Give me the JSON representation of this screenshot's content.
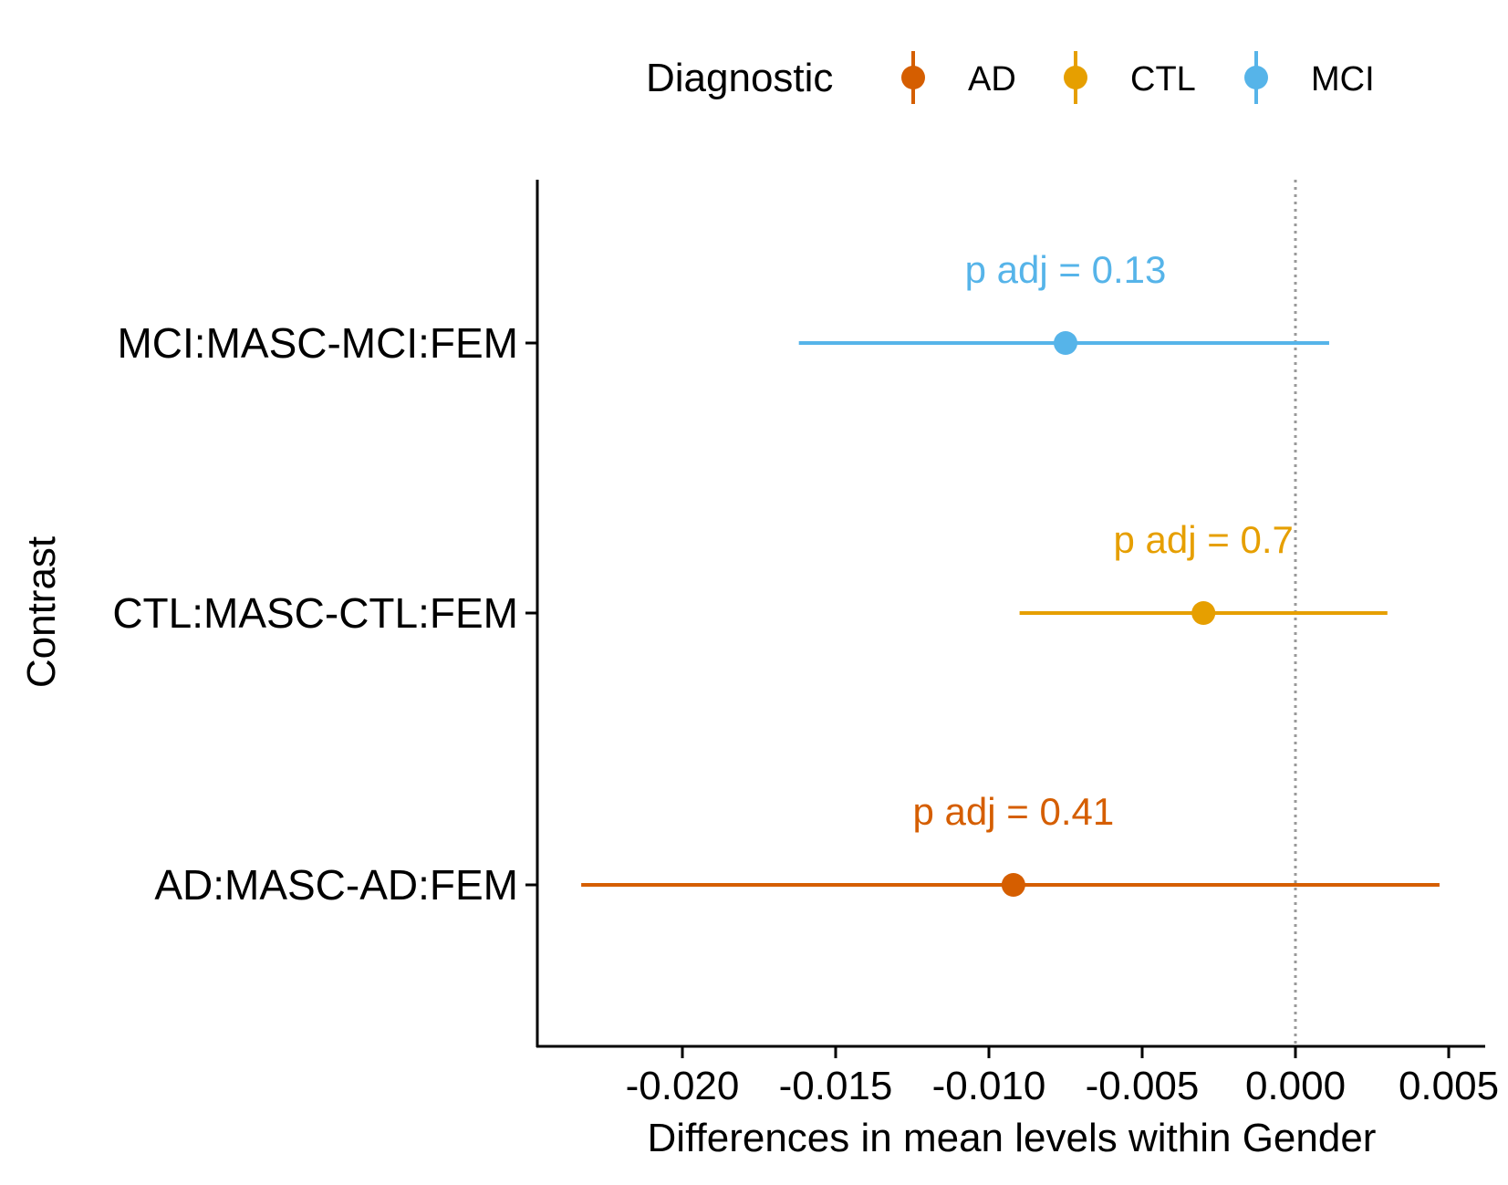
{
  "chart_data": {
    "type": "scatter",
    "subtype": "point-range",
    "title": "",
    "xlabel": "Differences in mean levels within Gender",
    "ylabel": "Contrast",
    "xlim": [
      -0.0247,
      0.0061
    ],
    "x_ticks": [
      -0.02,
      -0.015,
      -0.01,
      -0.005,
      0.0,
      0.005
    ],
    "x_tick_labels": [
      "-0.020",
      "-0.015",
      "-0.010",
      "-0.005",
      "0.000",
      "0.005"
    ],
    "categories": [
      "AD:MASC-AD:FEM",
      "CTL:MASC-CTL:FEM",
      "MCI:MASC-MCI:FEM"
    ],
    "reference_line": {
      "x": 0.0,
      "style": "dotted",
      "color": "#999999"
    },
    "legend": {
      "title": "Diagnostic",
      "position": "top"
    },
    "grid": false,
    "series": [
      {
        "name": "AD",
        "color": "#D55E00",
        "category": "AD:MASC-AD:FEM",
        "estimate": -0.0092,
        "lower": -0.0233,
        "upper": 0.0047,
        "annotation": "p adj = 0.41"
      },
      {
        "name": "CTL",
        "color": "#E69F00",
        "category": "CTL:MASC-CTL:FEM",
        "estimate": -0.003,
        "lower": -0.009,
        "upper": 0.003,
        "annotation": "p adj = 0.7"
      },
      {
        "name": "MCI",
        "color": "#56B4E9",
        "category": "MCI:MASC-MCI:FEM",
        "estimate": -0.0075,
        "lower": -0.0162,
        "upper": 0.0011,
        "annotation": "p adj = 0.13"
      }
    ]
  }
}
